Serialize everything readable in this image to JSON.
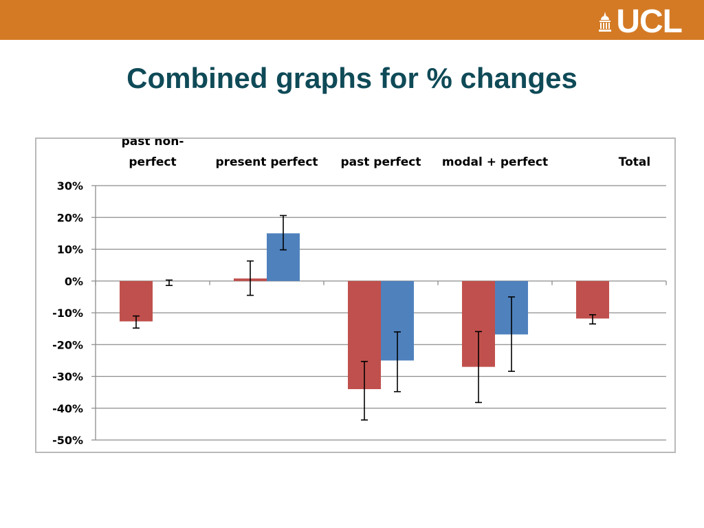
{
  "slide": {
    "title": "Combined graphs for % changes",
    "header_color": "#d47a25",
    "title_color": "#0f4a57"
  },
  "logo": {
    "text": "UCL",
    "icon": "ucl-portico-icon"
  },
  "chart_data": {
    "type": "bar",
    "categories": [
      "past non-perfect",
      "present perfect",
      "past perfect",
      "modal + perfect",
      "Total"
    ],
    "category_label_lines": [
      [
        "past non-",
        "perfect"
      ],
      [
        "present perfect"
      ],
      [
        "past perfect"
      ],
      [
        "modal + perfect"
      ],
      [
        "Total"
      ]
    ],
    "series": [
      {
        "color": "#c0504d",
        "values": [
          -12.7,
          0.8,
          -34.0,
          -27.0,
          -11.8
        ],
        "error_low": [
          -14.8,
          -4.5,
          -43.7,
          -38.2,
          -13.5
        ],
        "error_high": [
          -11.0,
          6.3,
          -25.3,
          -15.9,
          -10.6
        ]
      },
      {
        "color": "#4f81bd",
        "values": [
          null,
          15.0,
          -25.0,
          -16.8,
          null
        ],
        "error_low": [
          -1.4,
          9.8,
          -34.8,
          -28.4,
          null
        ],
        "error_high": [
          0.3,
          20.6,
          -16.0,
          -5.0,
          null
        ]
      }
    ],
    "y_ticks": [
      "30%",
      "20%",
      "10%",
      "0%",
      "-10%",
      "-20%",
      "-30%",
      "-40%",
      "-50%"
    ],
    "ylim": [
      -50,
      30
    ],
    "grid": true,
    "category_labels_position": "top"
  }
}
